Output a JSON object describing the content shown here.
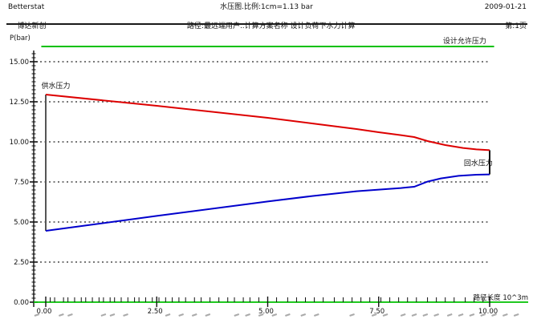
{
  "header": {
    "app_name_en": "Betterstat",
    "app_name_cn": "博达新创",
    "title": "水压图.比例:1cm=1.13 bar",
    "subtitle": "路径:最远端用户..计算方案名称 设计负荷下水力计算",
    "date": "2009-01-21",
    "page": "第:1页"
  },
  "chart_data": {
    "type": "line",
    "title": "水压图",
    "ylabel": "P(bar)",
    "xlabel": "路径长度 10^3m",
    "xlim": [
      0,
      10
    ],
    "ylim": [
      0,
      16.5
    ],
    "grid": "horizontal-dashed",
    "legend_position": "inline-labels",
    "x_ticks": [
      {
        "v": 0,
        "label": "0.00"
      },
      {
        "v": 2.5,
        "label": "2.50"
      },
      {
        "v": 5,
        "label": "5.00"
      },
      {
        "v": 7.5,
        "label": "7.50"
      },
      {
        "v": 10,
        "label": "10.00"
      }
    ],
    "y_ticks": [
      {
        "v": 0,
        "label": "0.00"
      },
      {
        "v": 2.5,
        "label": "2.50"
      },
      {
        "v": 5,
        "label": "5.00"
      },
      {
        "v": 7.5,
        "label": "7.50"
      },
      {
        "v": 10,
        "label": "10.00"
      },
      {
        "v": 12.5,
        "label": "12.50"
      },
      {
        "v": 15,
        "label": "15.00"
      }
    ],
    "y_minor_step": 0.25,
    "grid_y": [
      2.5,
      5,
      7.5,
      10,
      12.5,
      15
    ],
    "axis_color": "#00c000",
    "grid_color": "#4a4a4a",
    "series": [
      {
        "name": "设计允许压力",
        "color": "#00c000",
        "label_at": [
          8.95,
          16.15
        ],
        "points": [
          [
            -0.1,
            15.95
          ],
          [
            10.1,
            15.95
          ]
        ]
      },
      {
        "name": "供水压力",
        "color": "#dd0000",
        "label_at": [
          -0.1,
          13.35
        ],
        "points": [
          [
            0,
            12.95
          ],
          [
            2.5,
            12.25
          ],
          [
            5,
            11.5
          ],
          [
            6,
            11.15
          ],
          [
            7,
            10.8
          ],
          [
            7.5,
            10.6
          ],
          [
            8,
            10.42
          ],
          [
            8.3,
            10.3
          ],
          [
            8.6,
            10.05
          ],
          [
            9,
            9.8
          ],
          [
            9.4,
            9.62
          ],
          [
            9.7,
            9.53
          ],
          [
            10,
            9.48
          ]
        ]
      },
      {
        "name": "回水压力",
        "color": "#0000cc",
        "label_at": [
          9.42,
          8.52
        ],
        "points": [
          [
            0,
            4.45
          ],
          [
            2.5,
            5.38
          ],
          [
            5,
            6.28
          ],
          [
            6,
            6.62
          ],
          [
            7,
            6.92
          ],
          [
            7.5,
            7.02
          ],
          [
            8,
            7.12
          ],
          [
            8.3,
            7.2
          ],
          [
            8.6,
            7.52
          ],
          [
            8.9,
            7.72
          ],
          [
            9.3,
            7.88
          ],
          [
            9.7,
            7.95
          ],
          [
            10,
            7.97
          ]
        ]
      }
    ],
    "connectors": [
      {
        "x": 0,
        "from": 4.45,
        "to": 12.95,
        "color": "#555555"
      },
      {
        "x": 10,
        "from": 7.97,
        "to": 9.48,
        "color": "#111111"
      }
    ],
    "node_tick_x": [
      0.1,
      0.2,
      0.4,
      0.5,
      0.65,
      0.8,
      0.9,
      1.05,
      1.2,
      1.3,
      1.45,
      1.55,
      1.7,
      1.85,
      2.0,
      2.1,
      2.25,
      2.4,
      2.55,
      2.7,
      2.85,
      3.0,
      3.15,
      3.35,
      3.5,
      3.7,
      3.9,
      4.1,
      4.25,
      4.45,
      4.6,
      4.8,
      5.0,
      5.2,
      5.45,
      5.65,
      5.85,
      6.05,
      6.25,
      6.5,
      6.7,
      6.9,
      7.1,
      7.3,
      7.55,
      7.75,
      7.95,
      8.15,
      8.35,
      8.6,
      8.8,
      9.0,
      9.2,
      9.45,
      9.65,
      9.85,
      10.0
    ],
    "node_mark_x": [
      -0.2,
      0.35,
      0.55,
      1.3,
      1.5,
      1.8,
      2.75,
      3.05,
      3.35,
      3.65,
      4.3,
      4.55,
      4.85,
      5.15,
      5.45,
      5.8,
      6.1,
      6.9,
      7.4,
      7.65,
      8.05,
      8.3,
      8.55,
      8.8,
      9.1,
      9.35,
      9.6,
      9.85,
      10.1,
      10.35,
      10.6
    ],
    "node_mark_color": "#aaaaaa"
  }
}
